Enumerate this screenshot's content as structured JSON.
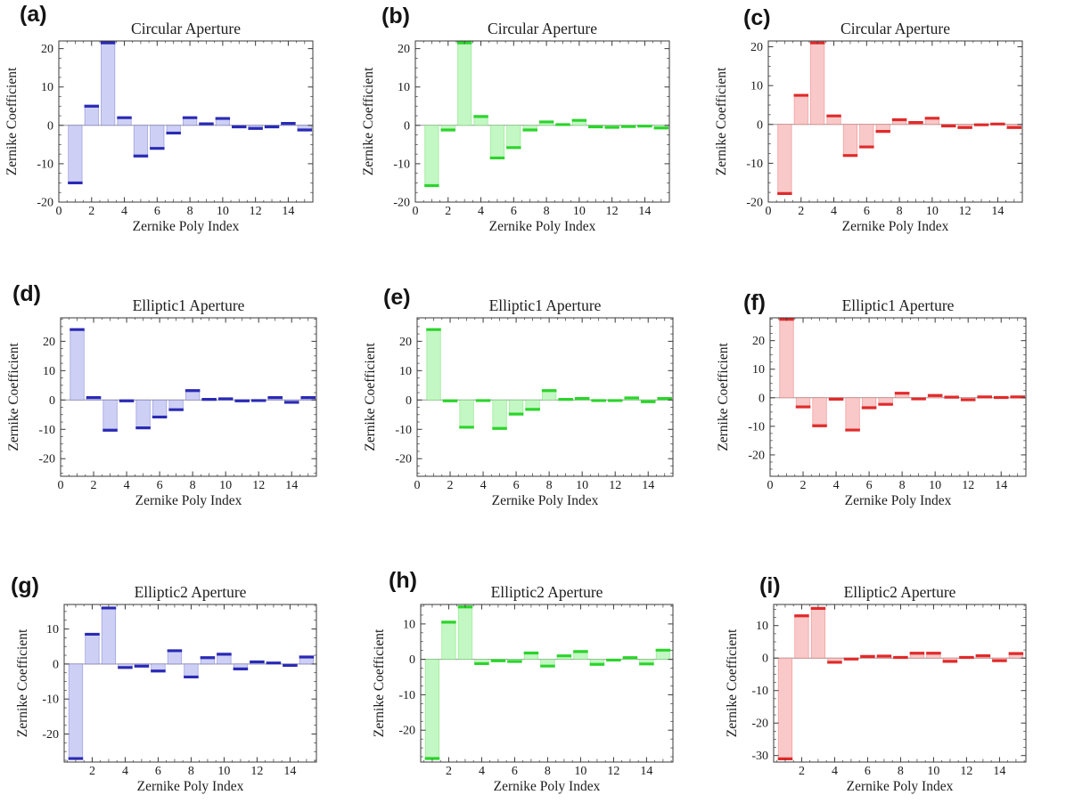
{
  "figure": {
    "description": "Zernike coefficient bar charts for three aperture shapes in three colors",
    "xlabel": "Zernike Poly Index",
    "ylabel": "Zernike Coefficient"
  },
  "chart_data": [
    {
      "panel_label": "(a)",
      "type": "bar",
      "title": "Circular Aperture",
      "xlabel": "Zernike Poly Index",
      "ylabel": "Zernike Coefficient",
      "categories": [
        1,
        2,
        3,
        4,
        5,
        6,
        7,
        8,
        9,
        10,
        11,
        12,
        13,
        14,
        15
      ],
      "values": [
        -15,
        5,
        21.5,
        2,
        -8,
        -6,
        -2,
        2,
        0.4,
        1.8,
        -0.4,
        -0.8,
        -0.4,
        0.5,
        -1.2
      ],
      "xlim": [
        0,
        15.5
      ],
      "ylim": [
        -20,
        22
      ],
      "xticks": [
        0,
        2,
        4,
        6,
        8,
        10,
        12,
        14
      ],
      "yticks": [
        -20,
        -10,
        0,
        10,
        20
      ],
      "color_fill": "#cdd0f4",
      "color_edge": "#2a2ab5"
    },
    {
      "panel_label": "(b)",
      "type": "bar",
      "title": "Circular Aperture",
      "xlabel": "Zernike Poly Index",
      "ylabel": "Zernike Coefficient",
      "categories": [
        1,
        2,
        3,
        4,
        5,
        6,
        7,
        8,
        9,
        10,
        11,
        12,
        13,
        14,
        15
      ],
      "values": [
        -15.7,
        -1.2,
        21.5,
        2.3,
        -8.5,
        -5.8,
        -1.2,
        0.9,
        0.2,
        1.3,
        -0.4,
        -0.5,
        -0.3,
        -0.2,
        -0.7
      ],
      "xlim": [
        0,
        15.5
      ],
      "ylim": [
        -20,
        22
      ],
      "xticks": [
        0,
        2,
        4,
        6,
        8,
        10,
        12,
        14
      ],
      "yticks": [
        -20,
        -10,
        0,
        10,
        20
      ],
      "color_fill": "#c3f7c3",
      "color_edge": "#2bd42b"
    },
    {
      "panel_label": "(c)",
      "type": "bar",
      "title": "Circular Aperture",
      "xlabel": "Zernike Poly Index",
      "ylabel": "Zernike Coefficient",
      "categories": [
        1,
        2,
        3,
        4,
        5,
        6,
        7,
        8,
        9,
        10,
        11,
        12,
        13,
        14,
        15
      ],
      "values": [
        -17.8,
        7.5,
        21,
        2.2,
        -8,
        -5.8,
        -1.8,
        1.2,
        0.5,
        1.6,
        -0.4,
        -0.8,
        -0.1,
        0.1,
        -0.8
      ],
      "xlim": [
        0,
        15.5
      ],
      "ylim": [
        -20,
        21.5
      ],
      "xticks": [
        0,
        2,
        4,
        6,
        8,
        10,
        12,
        14
      ],
      "yticks": [
        -20,
        -10,
        0,
        10,
        20
      ],
      "color_fill": "#f9c9c9",
      "color_edge": "#e02a2a"
    },
    {
      "panel_label": "(d)",
      "type": "bar",
      "title": "Elliptic1 Aperture",
      "xlabel": "Zernike Poly Index",
      "ylabel": "Zernike Coefficient",
      "categories": [
        1,
        2,
        3,
        4,
        5,
        6,
        7,
        8,
        9,
        10,
        11,
        12,
        13,
        14,
        15
      ],
      "values": [
        24,
        0.8,
        -10.3,
        -0.3,
        -9.5,
        -5.8,
        -3.3,
        3.2,
        0.2,
        0.4,
        -0.3,
        -0.2,
        0.8,
        -0.8,
        0.8
      ],
      "xlim": [
        0,
        15.5
      ],
      "ylim": [
        -26,
        28
      ],
      "xticks": [
        0,
        2,
        4,
        6,
        8,
        10,
        12,
        14
      ],
      "yticks": [
        -20,
        -10,
        0,
        10,
        20
      ],
      "color_fill": "#cdd0f4",
      "color_edge": "#2a2ab5"
    },
    {
      "panel_label": "(e)",
      "type": "bar",
      "title": "Elliptic1 Aperture",
      "xlabel": "Zernike Poly Index",
      "ylabel": "Zernike Coefficient",
      "categories": [
        1,
        2,
        3,
        4,
        5,
        6,
        7,
        8,
        9,
        10,
        11,
        12,
        13,
        14,
        15
      ],
      "values": [
        24,
        -0.3,
        -9.3,
        -0.2,
        -9.7,
        -4.8,
        -3.2,
        3.2,
        0.2,
        0.5,
        -0.2,
        -0.2,
        0.7,
        -0.6,
        0.5
      ],
      "xlim": [
        0,
        15.5
      ],
      "ylim": [
        -26,
        28
      ],
      "xticks": [
        0,
        2,
        4,
        6,
        8,
        10,
        12,
        14
      ],
      "yticks": [
        -20,
        -10,
        0,
        10,
        20
      ],
      "color_fill": "#c3f7c3",
      "color_edge": "#2bd42b"
    },
    {
      "panel_label": "(f)",
      "type": "bar",
      "title": "Elliptic1 Aperture",
      "xlabel": "Zernike Poly Index",
      "ylabel": "Zernike Coefficient",
      "categories": [
        1,
        2,
        3,
        4,
        5,
        6,
        7,
        8,
        9,
        10,
        11,
        12,
        13,
        14,
        15
      ],
      "values": [
        27.5,
        -3.2,
        -9.8,
        -0.5,
        -11.3,
        -3.5,
        -2.3,
        1.6,
        -0.4,
        0.8,
        0.2,
        -0.7,
        0.3,
        0.1,
        0.3
      ],
      "xlim": [
        0,
        15.5
      ],
      "ylim": [
        -27.5,
        28
      ],
      "xticks": [
        0,
        2,
        4,
        6,
        8,
        10,
        12,
        14
      ],
      "yticks": [
        -20,
        -10,
        0,
        10,
        20
      ],
      "color_fill": "#f9c9c9",
      "color_edge": "#e02a2a"
    },
    {
      "panel_label": "(g)",
      "type": "bar",
      "title": "Elliptic2 Aperture",
      "xlabel": "Zernike Poly Index",
      "ylabel": "Zernike Coefficient",
      "categories": [
        1,
        2,
        3,
        4,
        5,
        6,
        7,
        8,
        9,
        10,
        11,
        12,
        13,
        14,
        15
      ],
      "values": [
        -27,
        8.5,
        16,
        -1,
        -0.6,
        -2,
        3.8,
        -3.7,
        1.8,
        2.8,
        -1.4,
        0.6,
        0.3,
        -0.4,
        2
      ],
      "xlim": [
        0.3,
        15.6
      ],
      "ylim": [
        -28,
        17
      ],
      "xticks": [
        2,
        4,
        6,
        8,
        10,
        12,
        14
      ],
      "yticks": [
        -20,
        -10,
        0,
        10
      ],
      "color_fill": "#cdd0f4",
      "color_edge": "#2a2ab5"
    },
    {
      "panel_label": "(h)",
      "type": "bar",
      "title": "Elliptic2 Aperture",
      "xlabel": "Zernike Poly Index",
      "ylabel": "Zernike Coefficient",
      "categories": [
        1,
        2,
        3,
        4,
        5,
        6,
        7,
        8,
        9,
        10,
        11,
        12,
        13,
        14,
        15
      ],
      "values": [
        -28,
        10.5,
        14.8,
        -1.2,
        -0.4,
        -0.6,
        1.8,
        -1.9,
        1,
        2.2,
        -1.4,
        -0.2,
        0.5,
        -1.3,
        2.6
      ],
      "xlim": [
        0.3,
        15.6
      ],
      "ylim": [
        -29,
        15.5
      ],
      "xticks": [
        2,
        4,
        6,
        8,
        10,
        12,
        14
      ],
      "yticks": [
        -20,
        -10,
        0,
        10
      ],
      "color_fill": "#c3f7c3",
      "color_edge": "#2bd42b"
    },
    {
      "panel_label": "(i)",
      "type": "bar",
      "title": "Elliptic2 Aperture",
      "xlabel": "Zernike Poly Index",
      "ylabel": "Zernike Coefficient",
      "categories": [
        1,
        2,
        3,
        4,
        5,
        6,
        7,
        8,
        9,
        10,
        11,
        12,
        13,
        14,
        15
      ],
      "values": [
        -31,
        13,
        15.3,
        -1.3,
        -0.3,
        0.5,
        0.6,
        0.2,
        1.5,
        1.5,
        -1,
        0.2,
        0.7,
        -0.8,
        1.4
      ],
      "xlim": [
        0.3,
        15.6
      ],
      "ylim": [
        -32,
        16.5
      ],
      "xticks": [
        2,
        4,
        6,
        8,
        10,
        12,
        14
      ],
      "yticks": [
        -30,
        -20,
        -10,
        0,
        10
      ],
      "color_fill": "#f9c9c9",
      "color_edge": "#e02a2a"
    }
  ],
  "style_colors": {
    "frame": "#3a3a3a",
    "zero_line": "#999999",
    "text": "#1c1c1c"
  }
}
